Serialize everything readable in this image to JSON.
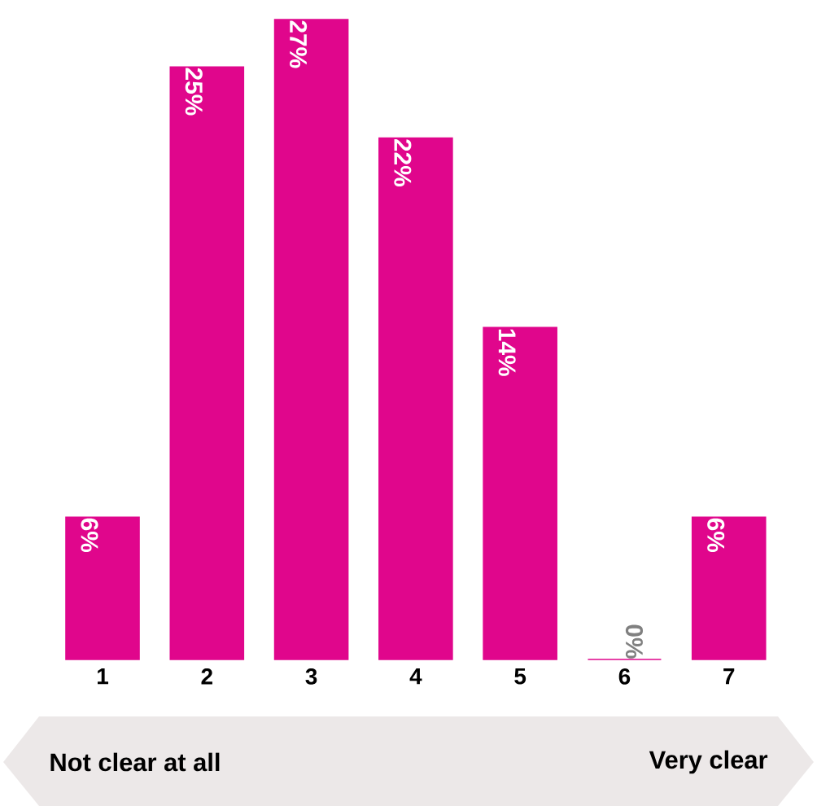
{
  "chart_data": {
    "type": "bar",
    "categories": [
      "1",
      "2",
      "3",
      "4",
      "5",
      "6",
      "7"
    ],
    "values": [
      6,
      25,
      27,
      22,
      14,
      0,
      6
    ],
    "value_labels": [
      "6%",
      "25%",
      "27%",
      "22%",
      "14%",
      "0%",
      "6%"
    ],
    "color": "#e0068c",
    "annotations": [
      "Not clear at all",
      "Very clear"
    ]
  }
}
